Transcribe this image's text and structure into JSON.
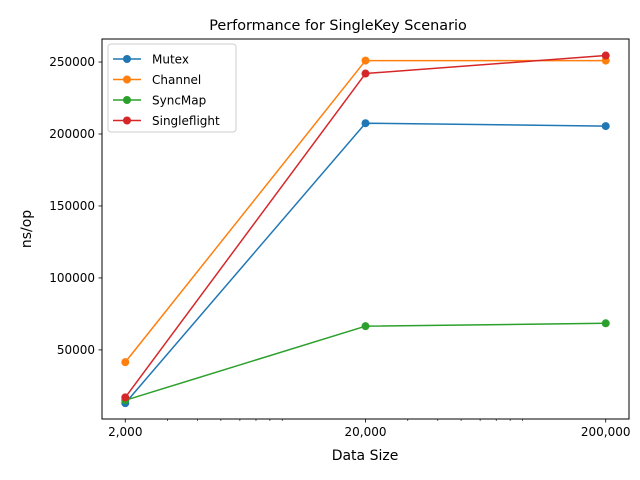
{
  "chart_data": {
    "type": "line",
    "title": "Performance for SingleKey Scenario",
    "xlabel": "Data Size",
    "ylabel": "ns/op",
    "x": [
      2000,
      20000,
      200000
    ],
    "x_scale": "log",
    "x_tick_labels": [
      "2,000",
      "20,000",
      "200,000"
    ],
    "xlim": [
      1600,
      250000
    ],
    "ylim": [
      2000,
      266000
    ],
    "y_ticks": [
      50000,
      100000,
      150000,
      200000,
      250000
    ],
    "y_tick_labels": [
      "50000",
      "100000",
      "150000",
      "200000",
      "250000"
    ],
    "legend_position": "top-left",
    "series": [
      {
        "name": "Mutex",
        "color": "#1f77b4",
        "values": [
          13000,
          207500,
          205500
        ]
      },
      {
        "name": "Channel",
        "color": "#ff7f0e",
        "values": [
          41500,
          251000,
          251000
        ]
      },
      {
        "name": "SyncMap",
        "color": "#2ca02c",
        "values": [
          15000,
          66500,
          68500
        ]
      },
      {
        "name": "Singleflight",
        "color": "#d62728",
        "values": [
          17000,
          242000,
          254500
        ]
      }
    ]
  }
}
